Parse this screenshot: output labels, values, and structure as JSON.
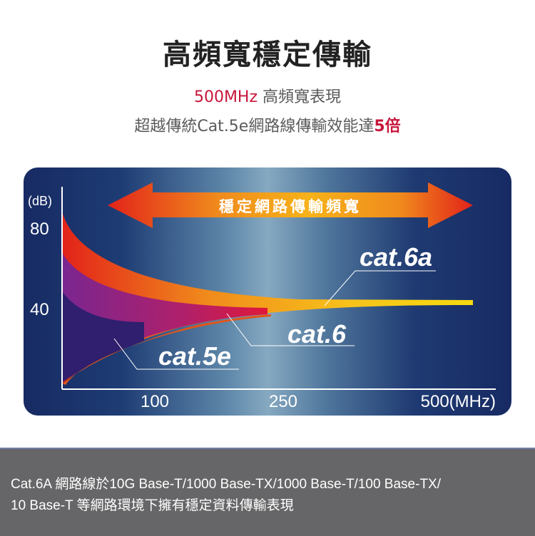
{
  "header": {
    "title": "高頻寬穩定傳輸",
    "line1_highlight": "500MHz",
    "line1_rest": " 高頻寬表現",
    "line2_prefix": "超越傳統Cat.5e網路線傳輸效能達",
    "line2_highlight": "5倍"
  },
  "diagram": {
    "y_unit": "(dB)",
    "y_ticks": [
      "80",
      "40"
    ],
    "x_ticks": [
      "100",
      "250",
      "500(MHz)"
    ],
    "arrow_label": "穩定網路傳輸頻寬",
    "labels": {
      "cat6a": "cat.6a",
      "cat6": "cat.6",
      "cat5e": "cat.5e"
    },
    "colors": {
      "accent_red": "#c8163a",
      "panel_dark": "#172a63",
      "cat6a": "#f5b21c",
      "cat6": "#b0206a",
      "cat5e": "#3a1f7a"
    }
  },
  "footer": {
    "line1": "Cat.6A 網路線於10G Base-T/1000 Base-TX/1000 Base-T/100 Base-TX/",
    "line2": "10 Base-T 等網路環境下擁有穩定資料傳輸表現"
  }
}
